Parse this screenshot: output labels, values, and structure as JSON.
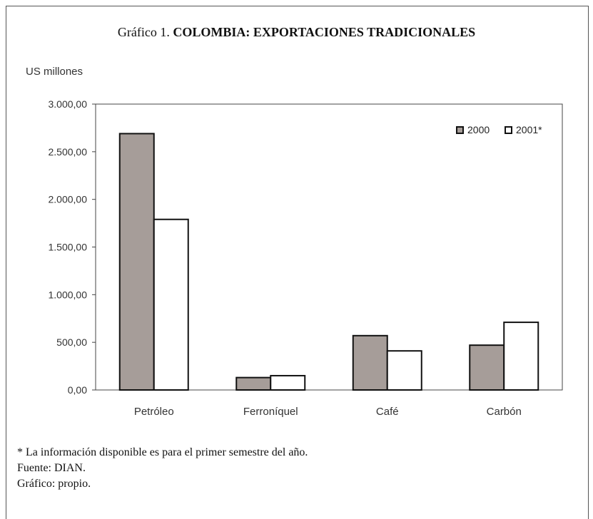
{
  "chart_data": {
    "type": "bar",
    "title_prefix": "Gráfico 1.",
    "title": "COLOMBIA: EXPORTACIONES TRADICIONALES",
    "ylabel": "US millones",
    "xlabel": "",
    "categories": [
      "Petróleo",
      "Ferroníquel",
      "Café",
      "Carbón"
    ],
    "series": [
      {
        "name": "2000",
        "values": [
          2690,
          130,
          570,
          470
        ],
        "color": "#a69d99"
      },
      {
        "name": "2001*",
        "values": [
          1790,
          150,
          410,
          710
        ],
        "color": "#ffffff"
      }
    ],
    "ylim": [
      0,
      3000
    ],
    "yticks": [
      0,
      500,
      1000,
      1500,
      2000,
      2500,
      3000
    ],
    "ytick_labels": [
      "0,00",
      "500,00",
      "1.000,00",
      "1.500,00",
      "2.000,00",
      "2.500,00",
      "3.000,00"
    ],
    "grid": false,
    "legend_position": "top-right"
  },
  "notes": {
    "footnote": "* La información disponible es para el primer semestre del año.",
    "source": "Fuente: DIAN.",
    "credit": "Gráfico: propio."
  }
}
